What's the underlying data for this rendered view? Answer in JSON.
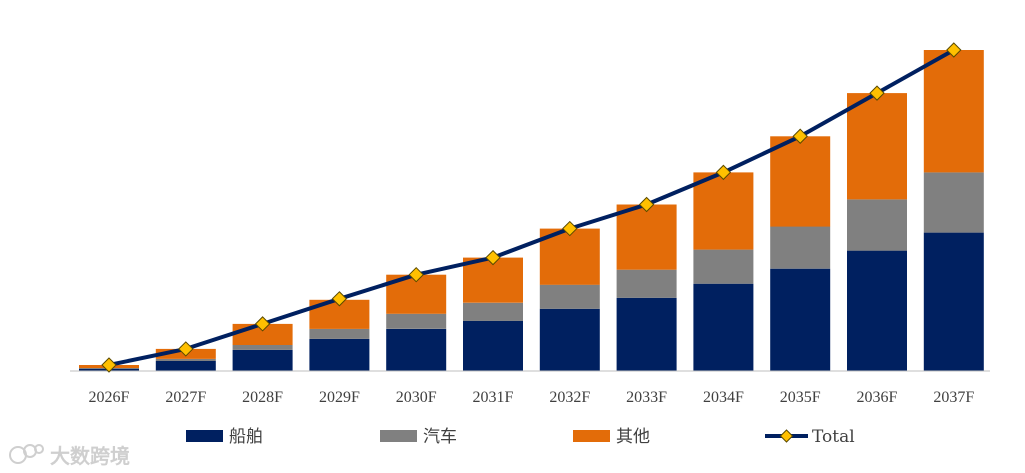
{
  "chart_data": {
    "type": "bar",
    "stacked": true,
    "categories": [
      "2026F",
      "2027F",
      "2028F",
      "2029F",
      "2030F",
      "2031F",
      "2032F",
      "2033F",
      "2034F",
      "2035F",
      "2036F",
      "2037F"
    ],
    "series": [
      {
        "name": "船舶",
        "color": "#002060",
        "values": [
          2,
          10,
          21,
          32,
          42,
          50,
          62,
          73,
          87,
          102,
          120,
          138
        ]
      },
      {
        "name": "汽车",
        "color": "#808080",
        "values": [
          1,
          2,
          5,
          10,
          15,
          18,
          24,
          28,
          34,
          42,
          51,
          60
        ]
      },
      {
        "name": "其他",
        "color": "#E36C09",
        "values": [
          3,
          10,
          21,
          29,
          39,
          45,
          56,
          65,
          77,
          90,
          106,
          122
        ]
      }
    ],
    "line": {
      "name": "Total",
      "values": [
        6,
        22,
        47,
        72,
        96,
        113,
        142,
        166,
        198,
        234,
        277,
        320
      ],
      "color": "#002060",
      "marker_color": "#FFC000"
    },
    "ylim": [
      0,
      320
    ],
    "title": "",
    "xlabel": "",
    "ylabel": "",
    "legend": "bottom",
    "grid": false
  },
  "watermark": {
    "text": "大数跨境"
  }
}
